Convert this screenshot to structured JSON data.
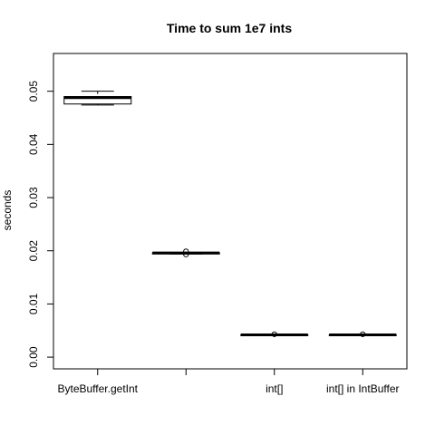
{
  "chart_data": {
    "type": "boxplot",
    "title": "Time to sum 1e7 ints",
    "xlabel": "",
    "ylabel": "seconds",
    "ylim": [
      -0.0022,
      0.0571
    ],
    "yticks": [
      "0.00",
      "0.01",
      "0.02",
      "0.03",
      "0.04",
      "0.05"
    ],
    "ytick_values": [
      0.0,
      0.01,
      0.02,
      0.03,
      0.04,
      0.05
    ],
    "categories": [
      "ByteBuffer.getInt",
      "",
      "int[]",
      "int[] in IntBuffer"
    ],
    "boxes": [
      {
        "min": 0.0474,
        "q1": 0.0476,
        "median": 0.0488,
        "q3": 0.049,
        "max": 0.05,
        "outliers": []
      },
      {
        "min": 0.0194,
        "q1": 0.0194,
        "median": 0.0196,
        "q3": 0.0196,
        "max": 0.0196,
        "outliers": [
          0.0193,
          0.0199
        ]
      },
      {
        "min": 0.0041,
        "q1": 0.0041,
        "median": 0.0042,
        "q3": 0.0042,
        "max": 0.0042,
        "outliers": [
          0.0043
        ]
      },
      {
        "min": 0.0041,
        "q1": 0.0041,
        "median": 0.0042,
        "q3": 0.0042,
        "max": 0.0042,
        "outliers": [
          0.0043
        ]
      }
    ],
    "grid": false,
    "legend": "none"
  }
}
